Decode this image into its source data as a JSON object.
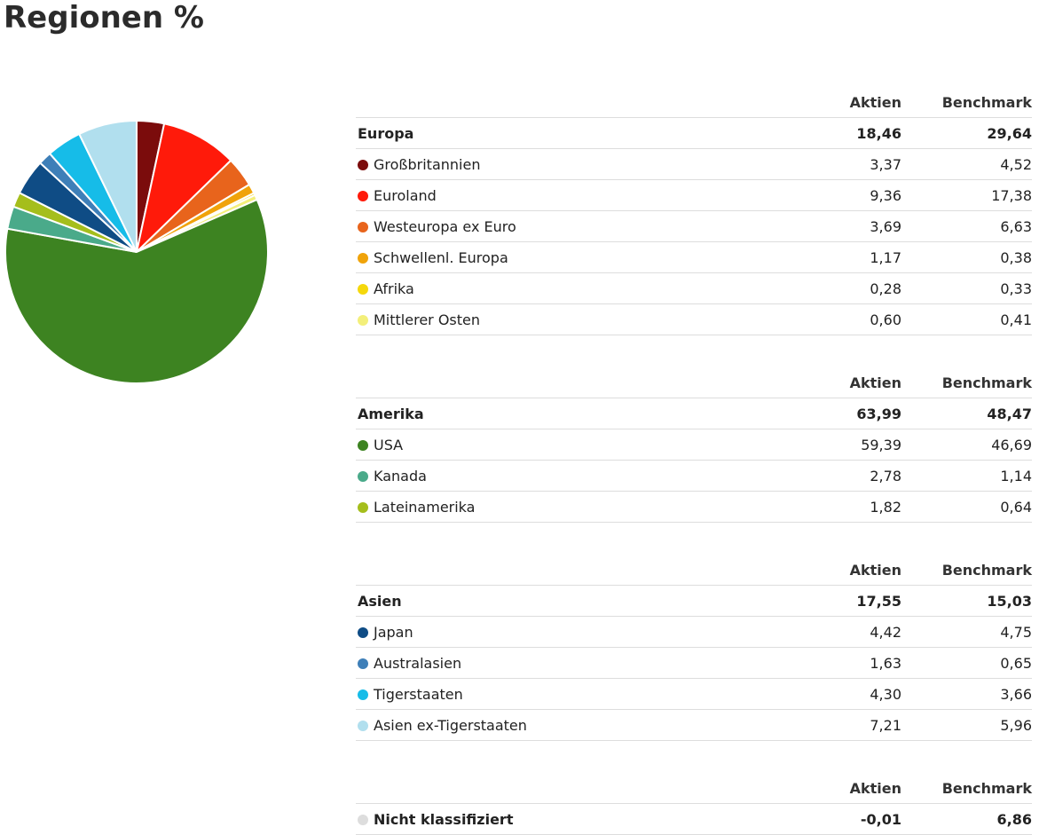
{
  "title": "Regionen %",
  "columns": {
    "aktien": "Aktien",
    "benchmark": "Benchmark"
  },
  "groups": [
    {
      "name": "Europa",
      "aktien": "18,46",
      "benchmark": "29,64",
      "items": [
        {
          "name": "Großbritannien",
          "color": "#7b0c0c",
          "aktien": "3,37",
          "benchmark": "4,52"
        },
        {
          "name": "Euroland",
          "color": "#ff1a0a",
          "aktien": "9,36",
          "benchmark": "17,38"
        },
        {
          "name": "Westeuropa ex Euro",
          "color": "#e8641c",
          "aktien": "3,69",
          "benchmark": "6,63"
        },
        {
          "name": "Schwellenl. Europa",
          "color": "#f0a30a",
          "aktien": "1,17",
          "benchmark": "0,38"
        },
        {
          "name": "Afrika",
          "color": "#f5d80c",
          "aktien": "0,28",
          "benchmark": "0,33"
        },
        {
          "name": "Mittlerer Osten",
          "color": "#f3ef7a",
          "aktien": "0,60",
          "benchmark": "0,41"
        }
      ]
    },
    {
      "name": "Amerika",
      "aktien": "63,99",
      "benchmark": "48,47",
      "items": [
        {
          "name": "USA",
          "color": "#3d8321",
          "aktien": "59,39",
          "benchmark": "46,69"
        },
        {
          "name": "Kanada",
          "color": "#4aaa8a",
          "aktien": "2,78",
          "benchmark": "1,14"
        },
        {
          "name": "Lateinamerika",
          "color": "#a5be1c",
          "aktien": "1,82",
          "benchmark": "0,64"
        }
      ]
    },
    {
      "name": "Asien",
      "aktien": "17,55",
      "benchmark": "15,03",
      "items": [
        {
          "name": "Japan",
          "color": "#0f4c85",
          "aktien": "4,42",
          "benchmark": "4,75"
        },
        {
          "name": "Australasien",
          "color": "#3e7fb8",
          "aktien": "1,63",
          "benchmark": "0,65"
        },
        {
          "name": "Tigerstaaten",
          "color": "#16bce8",
          "aktien": "4,30",
          "benchmark": "3,66"
        },
        {
          "name": "Asien ex-Tigerstaaten",
          "color": "#b1dfee",
          "aktien": "7,21",
          "benchmark": "5,96"
        }
      ]
    }
  ],
  "unclassified": {
    "name": "Nicht klassifiziert",
    "color": "#dddddd",
    "aktien": "-0,01",
    "benchmark": "6,86"
  },
  "chart_data": {
    "type": "pie",
    "categories": [
      "Großbritannien",
      "Euroland",
      "Westeuropa ex Euro",
      "Schwellenl. Europa",
      "Afrika",
      "Mittlerer Osten",
      "USA",
      "Kanada",
      "Lateinamerika",
      "Japan",
      "Australasien",
      "Tigerstaaten",
      "Asien ex-Tigerstaaten"
    ],
    "values": [
      3.37,
      9.36,
      3.69,
      1.17,
      0.28,
      0.6,
      59.39,
      2.78,
      1.82,
      4.42,
      1.63,
      4.3,
      7.21
    ],
    "colors": [
      "#7b0c0c",
      "#ff1a0a",
      "#e8641c",
      "#f0a30a",
      "#f5d80c",
      "#f3ef7a",
      "#3d8321",
      "#4aaa8a",
      "#a5be1c",
      "#0f4c85",
      "#3e7fb8",
      "#16bce8",
      "#b1dfee"
    ],
    "title": "Regionen %"
  }
}
